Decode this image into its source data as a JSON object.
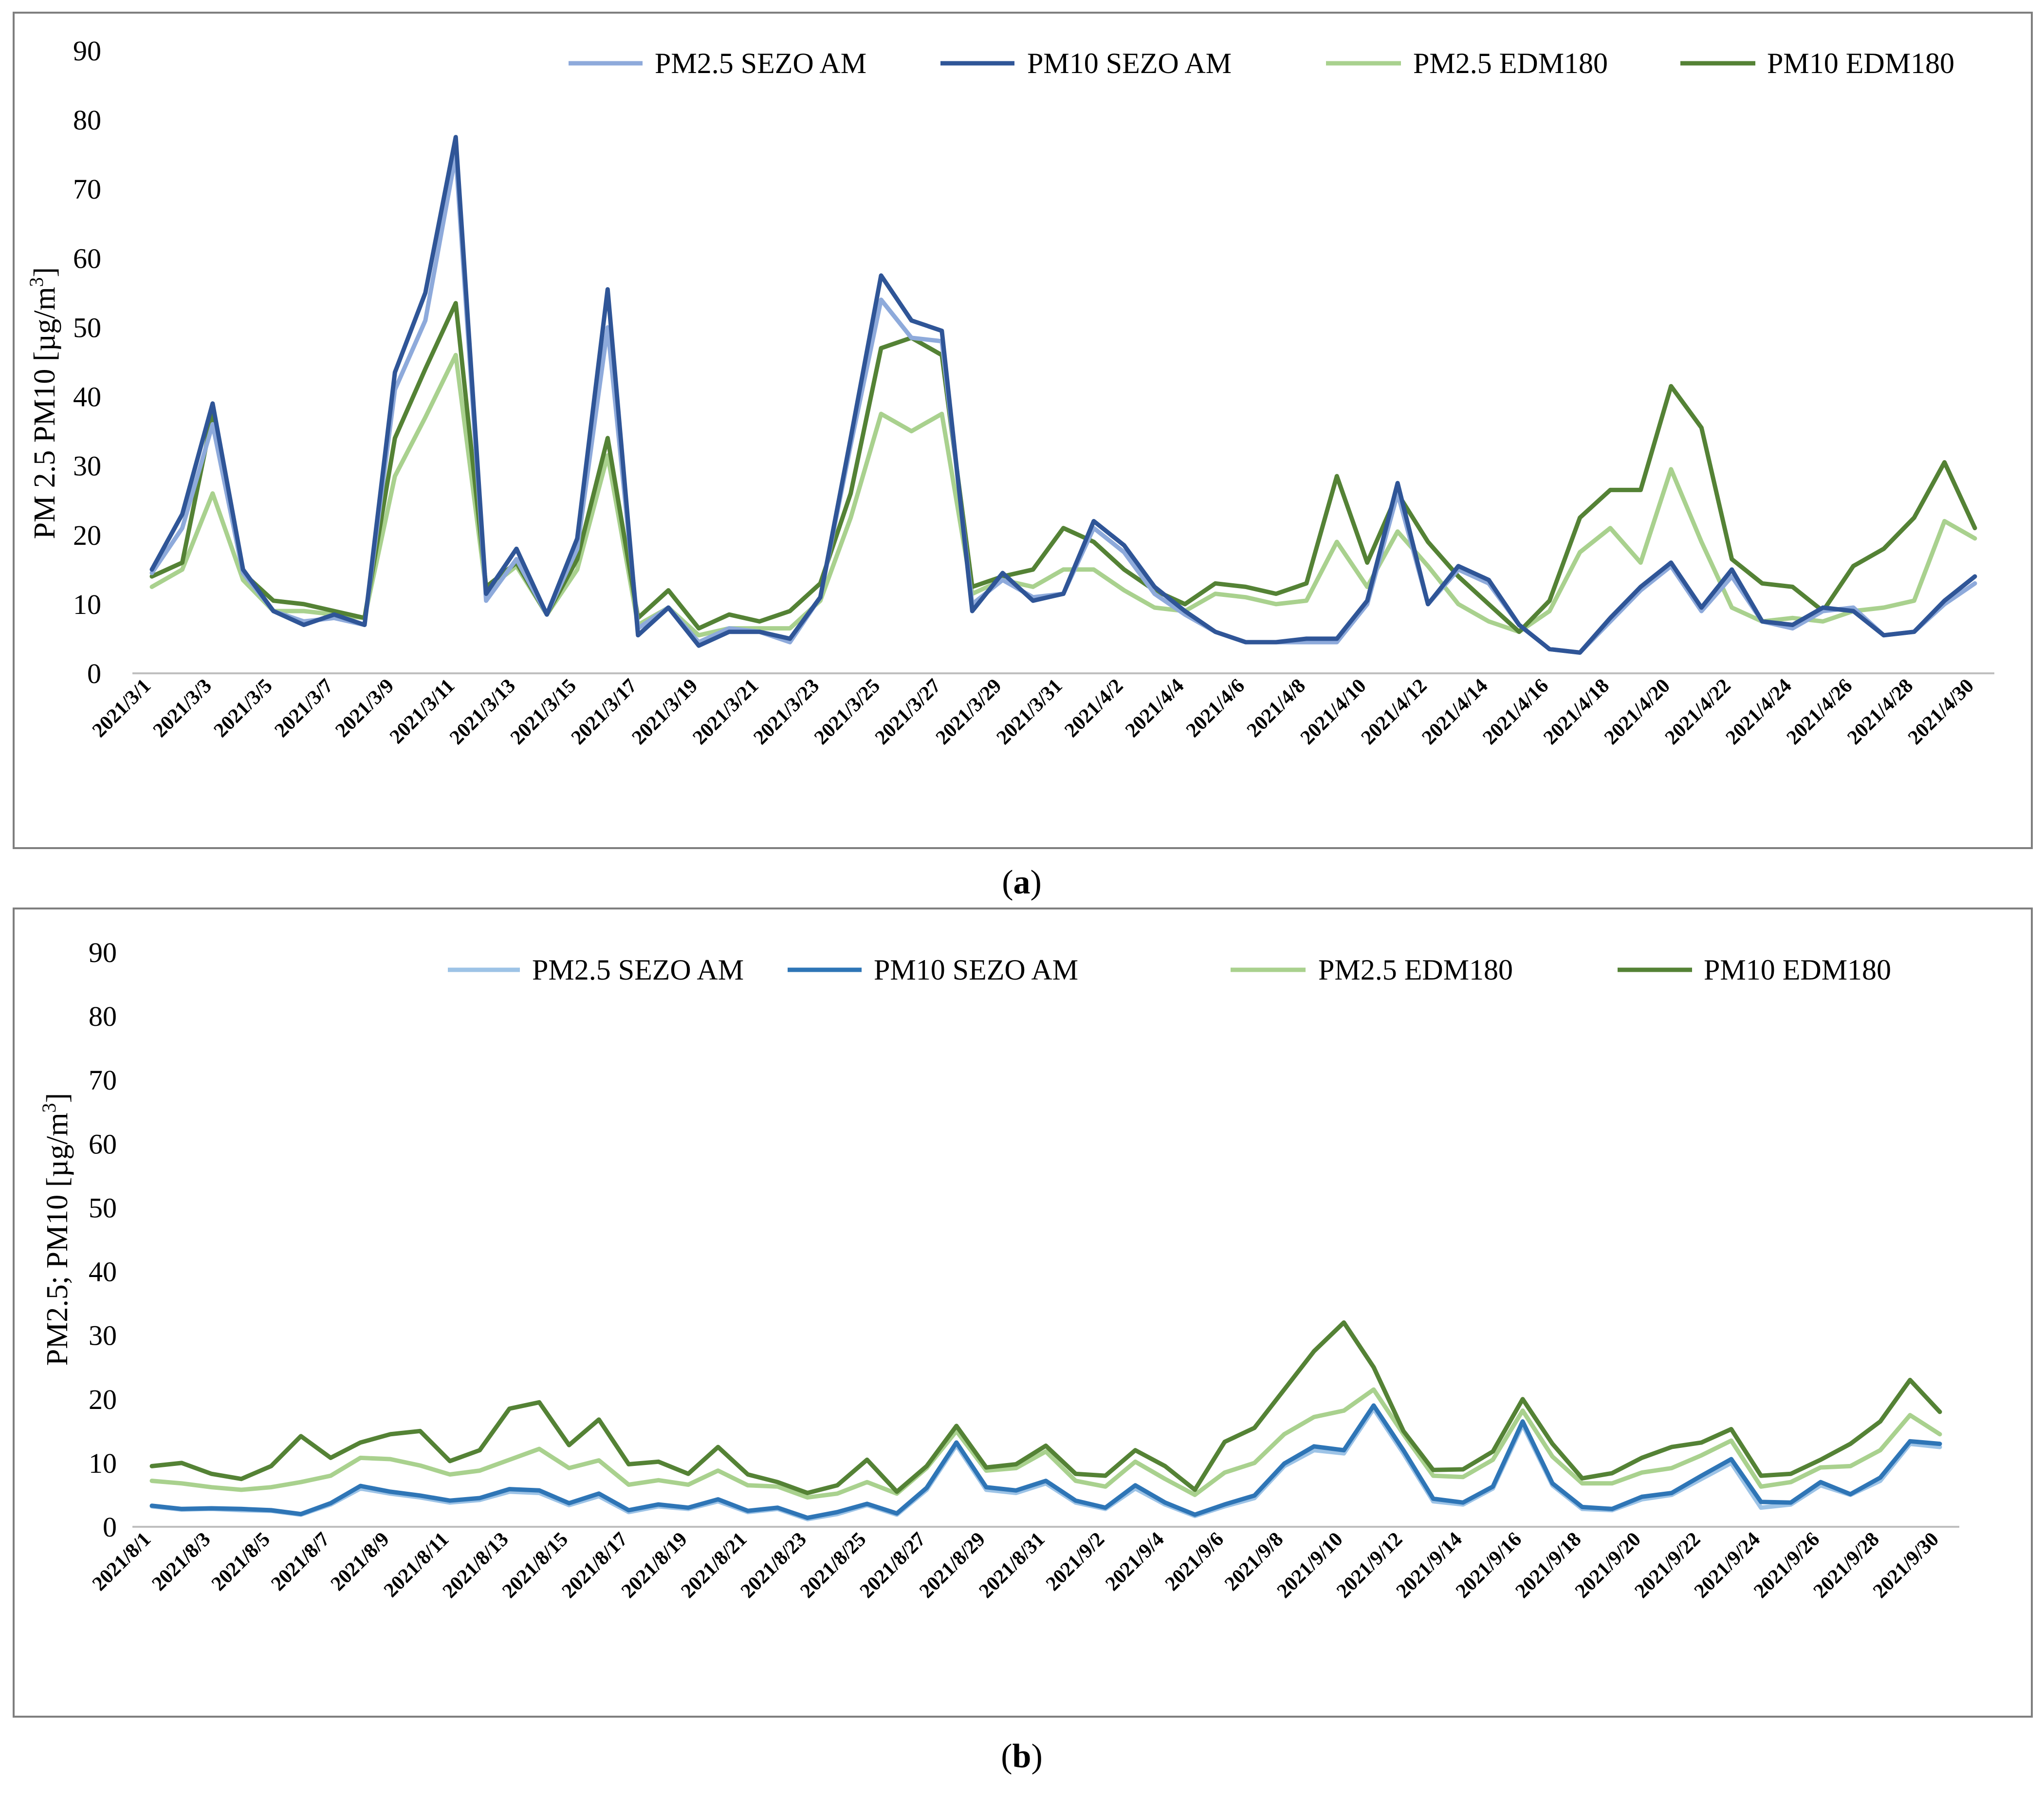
{
  "colors": {
    "pm25_sezo_a": "#8eaadb",
    "pm10_sezo_a": "#2f5597",
    "pm25_sezo_b": "#9dc3e6",
    "pm10_sezo_b": "#2e75b6",
    "pm25_edm": "#a9d18e",
    "pm10_edm": "#548235"
  },
  "chart_data": [
    {
      "type": "line",
      "caption_letter": "a",
      "title": "",
      "ylabel_main": "PM 2.5 PM10 [µg/m",
      "ylabel_sup": "3",
      "ylabel_end": "]",
      "ylim": [
        0,
        90
      ],
      "yticks": [
        "0",
        "10",
        "20",
        "30",
        "40",
        "50",
        "60",
        "70",
        "80",
        "90"
      ],
      "legend_position": "top-right",
      "x": [
        "2021/3/1",
        "2021/3/2",
        "2021/3/3",
        "2021/3/4",
        "2021/3/5",
        "2021/3/6",
        "2021/3/7",
        "2021/3/8",
        "2021/3/9",
        "2021/3/10",
        "2021/3/11",
        "2021/3/12",
        "2021/3/13",
        "2021/3/14",
        "2021/3/15",
        "2021/3/16",
        "2021/3/17",
        "2021/3/18",
        "2021/3/19",
        "2021/3/20",
        "2021/3/21",
        "2021/3/22",
        "2021/3/23",
        "2021/3/24",
        "2021/3/25",
        "2021/3/26",
        "2021/3/27",
        "2021/3/28",
        "2021/3/29",
        "2021/3/30",
        "2021/3/31",
        "2021/4/1",
        "2021/4/2",
        "2021/4/3",
        "2021/4/4",
        "2021/4/5",
        "2021/4/6",
        "2021/4/7",
        "2021/4/8",
        "2021/4/9",
        "2021/4/10",
        "2021/4/11",
        "2021/4/12",
        "2021/4/13",
        "2021/4/14",
        "2021/4/15",
        "2021/4/16",
        "2021/4/17",
        "2021/4/18",
        "2021/4/19",
        "2021/4/20",
        "2021/4/21",
        "2021/4/22",
        "2021/4/23",
        "2021/4/24",
        "2021/4/25",
        "2021/4/26",
        "2021/4/27",
        "2021/4/28",
        "2021/4/29",
        "2021/4/30"
      ],
      "xticks": [
        "2021/3/1",
        "2021/3/3",
        "2021/3/5",
        "2021/3/7",
        "2021/3/9",
        "2021/3/11",
        "2021/3/13",
        "2021/3/15",
        "2021/3/17",
        "2021/3/19",
        "2021/3/21",
        "2021/3/23",
        "2021/3/25",
        "2021/3/27",
        "2021/3/29",
        "2021/3/31",
        "2021/4/2",
        "2021/4/4",
        "2021/4/6",
        "2021/4/8",
        "2021/4/10",
        "2021/4/12",
        "2021/4/14",
        "2021/4/16",
        "2021/4/18",
        "2021/4/20",
        "2021/4/22",
        "2021/4/24",
        "2021/4/26",
        "2021/4/28",
        "2021/4/30"
      ],
      "series": [
        {
          "name": "PM2.5 SEZO AM",
          "color_key": "pm25_sezo_a",
          "values": [
            14.5,
            21,
            36,
            14.5,
            9,
            7.5,
            8,
            7,
            41,
            51,
            75,
            10.5,
            16.5,
            8.5,
            18,
            50,
            6.5,
            9.5,
            4.5,
            6.5,
            6,
            4.5,
            11,
            33,
            54,
            48.5,
            48,
            10,
            13.5,
            11,
            11.5,
            21,
            17.5,
            11.5,
            8.5,
            6,
            4.5,
            4.5,
            4.5,
            4.5,
            10,
            26,
            10,
            15,
            13,
            7,
            3.5,
            3,
            7.5,
            12,
            15.5,
            9,
            14,
            7.5,
            6.5,
            9,
            9.5,
            5.5,
            6,
            10,
            13
          ]
        },
        {
          "name": "PM10 SEZO AM",
          "color_key": "pm10_sezo_a",
          "values": [
            15,
            23,
            39,
            15,
            9,
            7,
            8.5,
            7,
            43.5,
            55,
            77.5,
            11.5,
            18,
            8.5,
            19.5,
            55.5,
            5.5,
            9.5,
            4,
            6,
            6,
            5,
            11,
            34,
            57.5,
            51,
            49.5,
            9,
            14.5,
            10.5,
            11.5,
            22,
            18.5,
            12.5,
            9,
            6,
            4.5,
            4.5,
            5,
            5,
            10.5,
            27.5,
            10,
            15.5,
            13.5,
            7,
            3.5,
            3,
            8,
            12.5,
            16,
            9.5,
            15,
            7.5,
            7,
            9.5,
            9,
            5.5,
            6,
            10.5,
            14
          ]
        },
        {
          "name": "PM2.5 EDM180",
          "color_key": "pm25_edm",
          "values": [
            12.5,
            15,
            26,
            13.5,
            9,
            9,
            8.5,
            8,
            28.5,
            37,
            46,
            12,
            15.5,
            8.5,
            15,
            31.5,
            7,
            9.5,
            5.5,
            6.5,
            6.5,
            6.5,
            10.5,
            22.5,
            37.5,
            35,
            37.5,
            11.5,
            13.5,
            12.5,
            15,
            15,
            12,
            9.5,
            9,
            11.5,
            11,
            10,
            10.5,
            19,
            12.5,
            20.5,
            15.5,
            10,
            7.5,
            6,
            9,
            17.5,
            21,
            16,
            29.5,
            19,
            9.5,
            7.5,
            8,
            7.5,
            9,
            9.5,
            10.5,
            22,
            19.5
          ]
        },
        {
          "name": "PM10 EDM180",
          "color_key": "pm10_edm",
          "values": [
            14,
            16,
            37.5,
            14.5,
            10.5,
            10,
            9,
            8,
            34,
            44,
            53.5,
            12.5,
            16,
            8.5,
            16.5,
            34,
            8,
            12,
            6.5,
            8.5,
            7.5,
            9,
            13,
            26,
            47,
            48.5,
            46,
            12.5,
            14,
            15,
            21,
            19,
            15,
            12,
            10,
            13,
            12.5,
            11.5,
            13,
            28.5,
            16,
            26,
            19,
            14,
            10,
            6,
            10.5,
            22.5,
            26.5,
            26.5,
            41.5,
            35.5,
            16.5,
            13,
            12.5,
            9,
            15.5,
            18,
            22.5,
            30.5,
            21
          ]
        }
      ]
    },
    {
      "type": "line",
      "caption_letter": "b",
      "title": "",
      "ylabel_main": "PM2.5; PM10 [µg/m",
      "ylabel_sup": "3",
      "ylabel_end": "]",
      "ylim": [
        0,
        90
      ],
      "yticks": [
        "0",
        "10",
        "20",
        "30",
        "40",
        "50",
        "60",
        "70",
        "80",
        "90"
      ],
      "legend_position": "top",
      "x": [
        "2021/8/1",
        "2021/8/2",
        "2021/8/3",
        "2021/8/4",
        "2021/8/5",
        "2021/8/6",
        "2021/8/7",
        "2021/8/8",
        "2021/8/9",
        "2021/8/10",
        "2021/8/11",
        "2021/8/12",
        "2021/8/13",
        "2021/8/14",
        "2021/8/15",
        "2021/8/16",
        "2021/8/17",
        "2021/8/18",
        "2021/8/19",
        "2021/8/20",
        "2021/8/21",
        "2021/8/22",
        "2021/8/23",
        "2021/8/24",
        "2021/8/25",
        "2021/8/26",
        "2021/8/27",
        "2021/8/28",
        "2021/8/29",
        "2021/8/30",
        "2021/8/31",
        "2021/9/1",
        "2021/9/2",
        "2021/9/3",
        "2021/9/4",
        "2021/9/5",
        "2021/9/6",
        "2021/9/7",
        "2021/9/8",
        "2021/9/9",
        "2021/9/10",
        "2021/9/11",
        "2021/9/12",
        "2021/9/13",
        "2021/9/14",
        "2021/9/15",
        "2021/9/16",
        "2021/9/17",
        "2021/9/18",
        "2021/9/19",
        "2021/9/20",
        "2021/9/21",
        "2021/9/22",
        "2021/9/23",
        "2021/9/24",
        "2021/9/25",
        "2021/9/26",
        "2021/9/27",
        "2021/9/28",
        "2021/9/29",
        "2021/9/30"
      ],
      "xticks": [
        "2021/8/1",
        "2021/8/3",
        "2021/8/5",
        "2021/8/7",
        "2021/8/9",
        "2021/8/11",
        "2021/8/13",
        "2021/8/15",
        "2021/8/17",
        "2021/8/19",
        "2021/8/21",
        "2021/8/23",
        "2021/8/25",
        "2021/8/27",
        "2021/8/29",
        "2021/8/31",
        "2021/9/2",
        "2021/9/4",
        "2021/9/6",
        "2021/9/8",
        "2021/9/10",
        "2021/9/12",
        "2021/9/14",
        "2021/9/16",
        "2021/9/18",
        "2021/9/20",
        "2021/9/22",
        "2021/9/24",
        "2021/9/26",
        "2021/9/28",
        "2021/9/30"
      ],
      "series": [
        {
          "name": "PM2.5 SEZO AM",
          "color_key": "pm25_sezo_b",
          "values": [
            3.2,
            2.7,
            2.8,
            2.6,
            2.5,
            1.9,
            3.5,
            6,
            5.2,
            4.6,
            3.8,
            4.2,
            5.5,
            5.3,
            3.4,
            4.8,
            2.3,
            3.2,
            2.8,
            4,
            2.3,
            2.8,
            1.2,
            2,
            3.4,
            1.9,
            5.8,
            12.8,
            5.8,
            5.3,
            6.8,
            3.8,
            2.8,
            6,
            3.5,
            1.7,
            3.2,
            4.5,
            9.5,
            12,
            11.5,
            18.5,
            11.5,
            4,
            3.5,
            6,
            16,
            6.5,
            2.8,
            2.6,
            4.3,
            5,
            7.5,
            10,
            3,
            3.5,
            6.5,
            5,
            7.2,
            13,
            12.5
          ]
        },
        {
          "name": "PM10 SEZO AM",
          "color_key": "pm10_sezo_b",
          "values": [
            3.3,
            2.8,
            2.9,
            2.8,
            2.6,
            2,
            3.7,
            6.4,
            5.5,
            4.9,
            4.1,
            4.5,
            5.9,
            5.7,
            3.7,
            5.2,
            2.6,
            3.5,
            3,
            4.3,
            2.5,
            3,
            1.4,
            2.3,
            3.6,
            2.1,
            6.1,
            13.2,
            6.2,
            5.7,
            7.2,
            4.1,
            3,
            6.5,
            3.8,
            1.9,
            3.5,
            4.9,
            9.9,
            12.6,
            12,
            19,
            12,
            4.4,
            3.8,
            6.3,
            16.5,
            6.8,
            3.1,
            2.8,
            4.7,
            5.3,
            8,
            10.6,
            3.9,
            3.8,
            7,
            5.1,
            7.7,
            13.4,
            13
          ]
        },
        {
          "name": "PM2.5 EDM180",
          "color_key": "pm25_edm",
          "values": [
            7.2,
            6.8,
            6.2,
            5.8,
            6.2,
            7,
            8,
            10.8,
            10.6,
            9.6,
            8.2,
            8.8,
            10.5,
            12.2,
            9.2,
            10.4,
            6.6,
            7.3,
            6.6,
            8.8,
            6.5,
            6.3,
            4.6,
            5.2,
            7,
            5.2,
            9.2,
            15,
            8.8,
            9.2,
            11.8,
            7.2,
            6.3,
            10.2,
            7.5,
            5,
            8.5,
            10,
            14.5,
            17.2,
            18.2,
            21.5,
            14.5,
            8,
            7.8,
            10.5,
            18.2,
            11,
            6.8,
            6.8,
            8.5,
            9.2,
            11.2,
            13.5,
            6.3,
            7,
            9.3,
            9.5,
            12,
            17.5,
            14.5
          ]
        },
        {
          "name": "PM10 EDM180",
          "color_key": "pm10_edm",
          "values": [
            9.5,
            10,
            8.3,
            7.5,
            9.5,
            14.2,
            10.8,
            13.2,
            14.5,
            15,
            10.3,
            12,
            18.5,
            19.5,
            12.8,
            16.8,
            9.8,
            10.2,
            8.3,
            12.5,
            8.2,
            7,
            5.3,
            6.5,
            10.5,
            5.5,
            9.5,
            15.8,
            9.3,
            9.8,
            12.7,
            8.3,
            8,
            12,
            9.5,
            5.8,
            13.3,
            15.5,
            21.5,
            27.5,
            32,
            25,
            15,
            8.9,
            9,
            11.8,
            20,
            13,
            7.6,
            8.4,
            10.8,
            12.5,
            13.2,
            15.3,
            8,
            8.3,
            10.5,
            13,
            16.5,
            23,
            18
          ]
        }
      ]
    }
  ]
}
